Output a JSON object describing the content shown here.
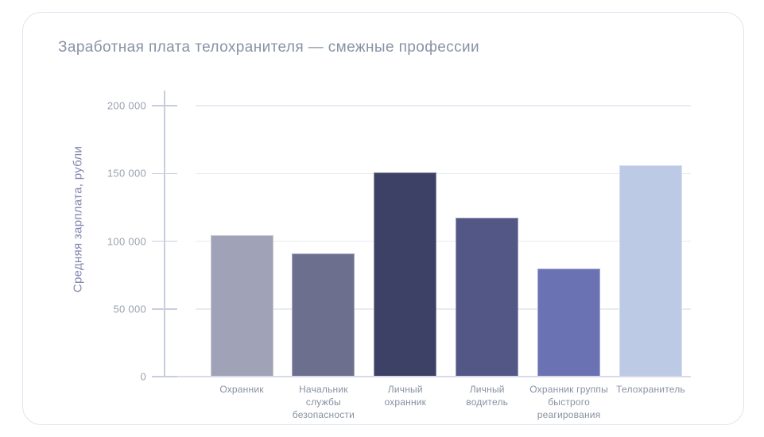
{
  "chart_data": {
    "type": "bar",
    "title": "Заработная плата телохранителя — смежные профессии",
    "ylabel": "Средняя зарплата, рубли",
    "xlabel": "",
    "categories": [
      "Охранник",
      "Начальник службы безопасности",
      "Личный охранник",
      "Личный водитель",
      "Охранник группы быстрого реагирования",
      "Телохранитель"
    ],
    "categories_wrapped": [
      [
        "Охранник"
      ],
      [
        "Начальник",
        "службы",
        "безопасности"
      ],
      [
        "Личный",
        "охранник"
      ],
      [
        "Личный",
        "водитель"
      ],
      [
        "Охранник группы",
        "быстрого",
        "реагирования"
      ],
      [
        "Телохранитель"
      ]
    ],
    "values": [
      104500,
      91000,
      151000,
      117500,
      80000,
      156000
    ],
    "bar_colors": [
      "#a0a3b7",
      "#6c708e",
      "#3d4165",
      "#535786",
      "#6a72b3",
      "#bccae5"
    ],
    "ylim": [
      0,
      200000
    ],
    "yticks": [
      0,
      50000,
      100000,
      150000,
      200000
    ],
    "ytick_labels": [
      "0",
      "50 000",
      "100 000",
      "150 000",
      "200 000"
    ],
    "grid": true,
    "legend": false
  },
  "colors": {
    "title_text": "#8793a4",
    "ytick_text": "#9aa1af",
    "xlabel_text": "#8791a2",
    "yaxis_title_text": "#8185ae",
    "gridline": "#e9ebf3",
    "axis_line": "#c9cede",
    "baseline": "#d8dce8",
    "card_border": "#e0e4ee",
    "card_bg": "#ffffff",
    "page_bg": "#ffffff"
  }
}
